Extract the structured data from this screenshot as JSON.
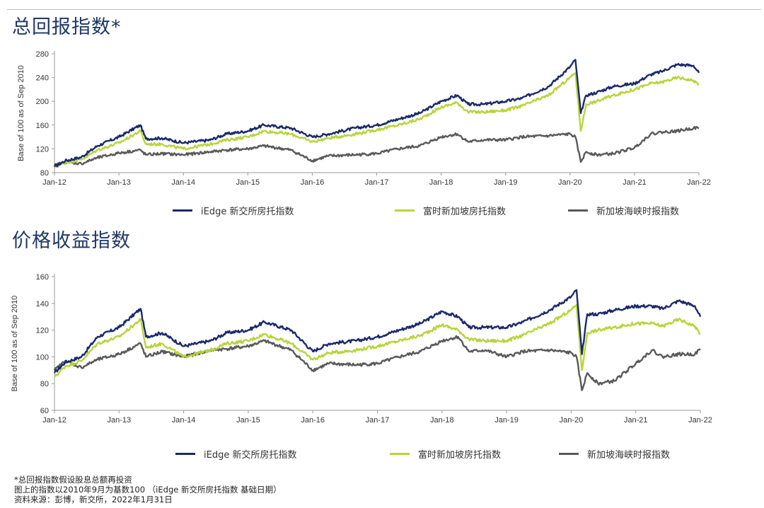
{
  "sections": {
    "total_return_title": "总回报指数*",
    "price_return_title": "价格收益指数"
  },
  "legend": {
    "s1": "iEdge 新交所房托指数",
    "s2": "富时新加坡房托指数",
    "s3": "新加坡海峡时报指数"
  },
  "footnotes": {
    "line1": "*总回报指数假设股息总额再投资",
    "line2": "图上的指数以2010年9月为基数100 （iEdge 新交所房托指数 基础日期）",
    "line3": "资料来源：彭博，新交所，2022年1月31日"
  },
  "colors": {
    "s1": "#1b2a6b",
    "s2": "#b7d53a",
    "s3": "#5a5a5a",
    "axis": "#999999"
  },
  "chart_data": [
    {
      "type": "line",
      "title": "总回报指数*",
      "ylabel": "Base of 100 as of Sep 2010",
      "ylim": [
        80,
        280
      ],
      "yticks": [
        80,
        120,
        160,
        200,
        240,
        280
      ],
      "xlabels": [
        "Jan-12",
        "Jan-13",
        "Jan-14",
        "Jan-15",
        "Jan-16",
        "Jan-17",
        "Jan-18",
        "Jan-19",
        "Jan-20",
        "Jan-21",
        "Jan-22"
      ],
      "x": [
        "2012-01",
        "2012-03",
        "2012-06",
        "2012-09",
        "2013-01",
        "2013-05",
        "2013-06",
        "2013-09",
        "2014-01",
        "2014-06",
        "2014-09",
        "2015-01",
        "2015-04",
        "2015-09",
        "2016-01",
        "2016-04",
        "2016-09",
        "2017-01",
        "2017-05",
        "2017-09",
        "2018-01",
        "2018-04",
        "2018-06",
        "2018-09",
        "2019-01",
        "2019-04",
        "2019-09",
        "2020-01",
        "2020-02",
        "2020-03",
        "2020-04",
        "2020-06",
        "2020-09",
        "2021-01",
        "2021-04",
        "2021-06",
        "2021-09",
        "2021-12",
        "2022-01"
      ],
      "series": [
        {
          "name": "iEdge 新交所房托指数",
          "values": [
            90,
            100,
            106,
            125,
            140,
            160,
            137,
            138,
            130,
            135,
            145,
            150,
            160,
            155,
            140,
            145,
            155,
            160,
            170,
            180,
            200,
            210,
            195,
            195,
            200,
            205,
            225,
            258,
            270,
            180,
            210,
            215,
            225,
            230,
            245,
            250,
            262,
            260,
            248
          ]
        },
        {
          "name": "富时新加坡房托指数",
          "values": [
            89,
            97,
            102,
            118,
            130,
            150,
            128,
            128,
            120,
            128,
            135,
            140,
            150,
            145,
            132,
            138,
            145,
            152,
            160,
            170,
            190,
            198,
            182,
            182,
            185,
            192,
            210,
            240,
            248,
            150,
            195,
            200,
            210,
            220,
            230,
            232,
            240,
            235,
            228
          ]
        },
        {
          "name": "新加坡海峡时报指数",
          "values": [
            92,
            98,
            95,
            105,
            113,
            118,
            110,
            112,
            110,
            115,
            118,
            120,
            125,
            118,
            100,
            108,
            110,
            112,
            120,
            125,
            140,
            145,
            132,
            135,
            135,
            140,
            142,
            145,
            140,
            98,
            115,
            110,
            112,
            122,
            145,
            148,
            150,
            155,
            155
          ]
        }
      ]
    },
    {
      "type": "line",
      "title": "价格收益指数",
      "ylabel": "Base of 100 as of Sep 2010",
      "ylim": [
        60,
        160
      ],
      "yticks": [
        60,
        80,
        100,
        120,
        140,
        160
      ],
      "xlabels": [
        "Jan-12",
        "Jan-13",
        "Jan-14",
        "Jan-15",
        "Jan-16",
        "Jan-17",
        "Jan-18",
        "Jan-19",
        "Jan-20",
        "Jan-21",
        "Jan-22"
      ],
      "x": [
        "2012-01",
        "2012-03",
        "2012-06",
        "2012-09",
        "2013-01",
        "2013-05",
        "2013-06",
        "2013-09",
        "2014-01",
        "2014-06",
        "2014-09",
        "2015-01",
        "2015-04",
        "2015-09",
        "2016-01",
        "2016-04",
        "2016-09",
        "2017-01",
        "2017-05",
        "2017-09",
        "2018-01",
        "2018-04",
        "2018-06",
        "2018-09",
        "2019-01",
        "2019-04",
        "2019-09",
        "2020-01",
        "2020-02",
        "2020-03",
        "2020-04",
        "2020-06",
        "2020-09",
        "2021-01",
        "2021-04",
        "2021-06",
        "2021-09",
        "2021-12",
        "2022-01"
      ],
      "series": [
        {
          "name": "iEdge 新交所房托指数",
          "values": [
            88,
            96,
            100,
            115,
            122,
            136,
            115,
            118,
            108,
            112,
            118,
            120,
            126,
            120,
            104,
            110,
            112,
            115,
            120,
            125,
            134,
            130,
            122,
            122,
            122,
            126,
            135,
            145,
            150,
            102,
            132,
            132,
            135,
            138,
            138,
            136,
            142,
            138,
            130
          ]
        },
        {
          "name": "富时新加坡房托指数",
          "values": [
            85,
            93,
            97,
            110,
            115,
            128,
            107,
            110,
            100,
            105,
            110,
            112,
            117,
            110,
            98,
            103,
            105,
            108,
            112,
            116,
            124,
            120,
            113,
            112,
            112,
            116,
            125,
            135,
            139,
            90,
            118,
            120,
            122,
            125,
            125,
            123,
            128,
            123,
            117
          ]
        },
        {
          "name": "新加坡海峡时报指数",
          "values": [
            90,
            97,
            92,
            98,
            102,
            110,
            100,
            104,
            100,
            105,
            106,
            108,
            112,
            105,
            90,
            95,
            94,
            95,
            100,
            104,
            112,
            115,
            104,
            105,
            100,
            104,
            105,
            103,
            100,
            75,
            88,
            80,
            82,
            95,
            105,
            100,
            102,
            102,
            106
          ]
        }
      ]
    }
  ]
}
